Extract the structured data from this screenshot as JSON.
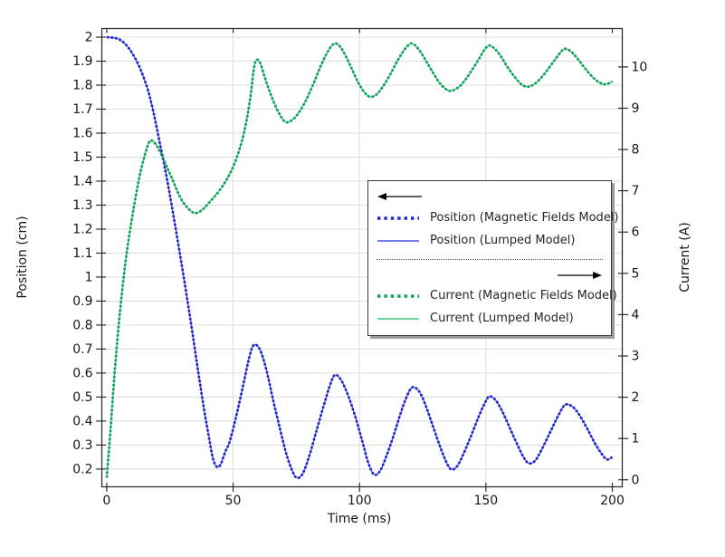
{
  "chart_data": {
    "type": "line",
    "title": "",
    "grid": true,
    "axes": {
      "x": {
        "label": "Time (ms)",
        "min": -1.93,
        "max": 203.94,
        "ticks": [
          0,
          50,
          100,
          150,
          200
        ],
        "grid_ticks": [
          50,
          100,
          150
        ]
      },
      "left": {
        "label": "Position (cm)",
        "min": 0.126,
        "max": 2.036,
        "ticks": [
          0.2,
          0.3,
          0.4,
          0.5,
          0.6,
          0.7,
          0.8,
          0.9,
          1,
          1.1,
          1.2,
          1.3,
          1.4,
          1.5,
          1.6,
          1.7,
          1.8,
          1.9,
          2
        ]
      },
      "right": {
        "label": "Current (A)",
        "min": -0.17,
        "max": 10.93,
        "ticks": [
          0,
          1,
          2,
          3,
          4,
          5,
          6,
          7,
          8,
          9,
          10
        ]
      }
    },
    "series": [
      {
        "name": "Position (Magnetic Fields Model)",
        "axis": "left",
        "style": "dotted",
        "color": "#2121cd",
        "points_ref": "position"
      },
      {
        "name": "Position (Lumped Model)",
        "axis": "left",
        "style": "solid",
        "color": "#4156d8",
        "points_ref": "position"
      },
      {
        "name": "Current (Magnetic Fields Model)",
        "axis": "right",
        "style": "dotted",
        "color": "#0ba153",
        "points_ref": "current"
      },
      {
        "name": "Current (Lumped Model)",
        "axis": "right",
        "style": "solid",
        "color": "#46bd81",
        "points_ref": "current"
      }
    ],
    "points": {
      "position": [
        [
          0,
          2.0
        ],
        [
          4,
          1.995
        ],
        [
          7,
          1.975
        ],
        [
          10,
          1.935
        ],
        [
          13,
          1.875
        ],
        [
          16,
          1.79
        ],
        [
          18,
          1.71
        ],
        [
          21,
          1.56
        ],
        [
          24,
          1.4
        ],
        [
          27,
          1.22
        ],
        [
          30,
          1.03
        ],
        [
          33,
          0.83
        ],
        [
          36,
          0.62
        ],
        [
          38.5,
          0.45
        ],
        [
          40.5,
          0.33
        ],
        [
          42,
          0.245
        ],
        [
          43.5,
          0.21
        ],
        [
          45,
          0.218
        ],
        [
          47,
          0.275
        ],
        [
          48.5,
          0.31
        ],
        [
          51,
          0.41
        ],
        [
          54,
          0.55
        ],
        [
          56.5,
          0.67
        ],
        [
          58.2,
          0.717
        ],
        [
          60.5,
          0.7
        ],
        [
          63,
          0.62
        ],
        [
          66,
          0.48
        ],
        [
          68.5,
          0.37
        ],
        [
          71,
          0.265
        ],
        [
          73.5,
          0.19
        ],
        [
          75.3,
          0.163
        ],
        [
          77.5,
          0.18
        ],
        [
          80,
          0.25
        ],
        [
          83,
          0.36
        ],
        [
          86,
          0.47
        ],
        [
          88.5,
          0.555
        ],
        [
          90.3,
          0.592
        ],
        [
          92.5,
          0.575
        ],
        [
          95,
          0.52
        ],
        [
          98,
          0.43
        ],
        [
          101,
          0.32
        ],
        [
          103.5,
          0.225
        ],
        [
          105.7,
          0.178
        ],
        [
          108,
          0.19
        ],
        [
          110.5,
          0.25
        ],
        [
          113.5,
          0.34
        ],
        [
          116.5,
          0.44
        ],
        [
          119,
          0.51
        ],
        [
          121,
          0.541
        ],
        [
          123.5,
          0.525
        ],
        [
          126,
          0.47
        ],
        [
          129,
          0.38
        ],
        [
          132,
          0.29
        ],
        [
          134.5,
          0.225
        ],
        [
          136.3,
          0.199
        ],
        [
          138.5,
          0.21
        ],
        [
          141,
          0.26
        ],
        [
          144,
          0.335
        ],
        [
          147,
          0.415
        ],
        [
          149.8,
          0.48
        ],
        [
          151.5,
          0.503
        ],
        [
          154,
          0.485
        ],
        [
          156.5,
          0.44
        ],
        [
          159.5,
          0.37
        ],
        [
          162.5,
          0.3
        ],
        [
          165,
          0.248
        ],
        [
          167,
          0.224
        ],
        [
          169.5,
          0.235
        ],
        [
          172,
          0.28
        ],
        [
          175,
          0.345
        ],
        [
          178,
          0.41
        ],
        [
          180.5,
          0.458
        ],
        [
          182,
          0.47
        ],
        [
          184.5,
          0.458
        ],
        [
          187,
          0.425
        ],
        [
          190,
          0.37
        ],
        [
          193,
          0.31
        ],
        [
          195.5,
          0.268
        ],
        [
          197.8,
          0.24
        ],
        [
          200,
          0.25
        ]
      ],
      "current": [
        [
          0,
          0.05
        ],
        [
          1.5,
          1.2
        ],
        [
          3,
          2.5
        ],
        [
          4.5,
          3.6
        ],
        [
          6,
          4.5
        ],
        [
          7.5,
          5.3
        ],
        [
          9,
          5.95
        ],
        [
          11,
          6.7
        ],
        [
          13,
          7.35
        ],
        [
          15,
          7.85
        ],
        [
          16.8,
          8.18
        ],
        [
          18,
          8.21
        ],
        [
          19.5,
          8.12
        ],
        [
          21.5,
          7.9
        ],
        [
          24,
          7.55
        ],
        [
          26.5,
          7.2
        ],
        [
          29,
          6.85
        ],
        [
          31.5,
          6.62
        ],
        [
          34,
          6.48
        ],
        [
          36,
          6.47
        ],
        [
          38.5,
          6.58
        ],
        [
          41.5,
          6.78
        ],
        [
          44.5,
          7.0
        ],
        [
          47.5,
          7.28
        ],
        [
          50.5,
          7.65
        ],
        [
          53,
          8.1
        ],
        [
          55,
          8.6
        ],
        [
          56.8,
          9.25
        ],
        [
          58.2,
          9.95
        ],
        [
          59.3,
          10.17
        ],
        [
          60.8,
          10.08
        ],
        [
          62.5,
          9.75
        ],
        [
          64.5,
          9.4
        ],
        [
          67,
          9.02
        ],
        [
          69.3,
          8.76
        ],
        [
          71,
          8.66
        ],
        [
          73,
          8.7
        ],
        [
          75.5,
          8.85
        ],
        [
          78.5,
          9.15
        ],
        [
          81.5,
          9.55
        ],
        [
          84.5,
          10.0
        ],
        [
          87,
          10.32
        ],
        [
          89,
          10.51
        ],
        [
          90.5,
          10.57
        ],
        [
          92.5,
          10.48
        ],
        [
          94.5,
          10.27
        ],
        [
          97,
          9.95
        ],
        [
          99.5,
          9.62
        ],
        [
          102,
          9.38
        ],
        [
          104,
          9.28
        ],
        [
          106.5,
          9.32
        ],
        [
          109,
          9.5
        ],
        [
          112,
          9.8
        ],
        [
          115,
          10.15
        ],
        [
          117.8,
          10.42
        ],
        [
          119.8,
          10.55
        ],
        [
          121.2,
          10.56
        ],
        [
          123.5,
          10.42
        ],
        [
          126,
          10.18
        ],
        [
          128.5,
          9.92
        ],
        [
          131.5,
          9.63
        ],
        [
          134,
          9.47
        ],
        [
          136,
          9.42
        ],
        [
          138.5,
          9.48
        ],
        [
          141,
          9.62
        ],
        [
          144,
          9.88
        ],
        [
          147,
          10.17
        ],
        [
          149.5,
          10.42
        ],
        [
          151.3,
          10.52
        ],
        [
          153.5,
          10.44
        ],
        [
          156,
          10.25
        ],
        [
          158.5,
          10.0
        ],
        [
          161.5,
          9.75
        ],
        [
          164,
          9.58
        ],
        [
          166.3,
          9.52
        ],
        [
          168.5,
          9.56
        ],
        [
          171,
          9.68
        ],
        [
          174,
          9.9
        ],
        [
          177,
          10.15
        ],
        [
          179.5,
          10.35
        ],
        [
          181.2,
          10.44
        ],
        [
          183.5,
          10.38
        ],
        [
          186,
          10.22
        ],
        [
          188.5,
          10.02
        ],
        [
          191.5,
          9.8
        ],
        [
          194,
          9.66
        ],
        [
          196.5,
          9.58
        ],
        [
          198.5,
          9.6
        ],
        [
          200,
          9.65
        ]
      ]
    },
    "legend_position": "middle-right"
  },
  "legend": {
    "items": [
      {
        "label": "Position (Magnetic Fields Model)",
        "swatch": "dotted",
        "color": "#2121cd"
      },
      {
        "label": "Position (Lumped Model)",
        "swatch": "solid",
        "color": "#4156d8"
      },
      {
        "label": "Current (Magnetic Fields Model)",
        "swatch": "dotted",
        "color": "#0ba153"
      },
      {
        "label": "Current (Lumped Model)",
        "swatch": "solid",
        "color": "#46bd81"
      }
    ]
  },
  "colors": {
    "grid": "#dcdcdc",
    "frame": "#2f2f2f",
    "tick_text": "#161616",
    "legend_border": "#3a3a3a",
    "legend_shadow": "#9c9c9c",
    "arrow": "#000000"
  }
}
